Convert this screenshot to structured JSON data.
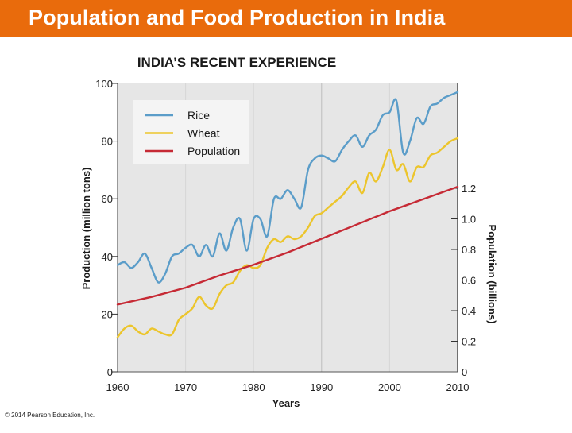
{
  "header": {
    "title": "Population and Food Production in India",
    "background_color": "#e96b0c"
  },
  "footer": {
    "copyright": "© 2014 Pearson Education, Inc."
  },
  "chart_data": {
    "type": "line",
    "title": "INDIA’S RECENT EXPERIENCE",
    "xlabel": "Years",
    "ylabel": "Production (million tons)",
    "y2label": "Population (billions)",
    "xlim": [
      1960,
      2010
    ],
    "ylim": [
      0,
      100
    ],
    "y2lim": [
      0,
      1.3
    ],
    "x_ticks": [
      1960,
      1970,
      1980,
      1990,
      2000,
      2010
    ],
    "x_tick_labels": [
      "1960",
      "1970",
      "1980",
      "1990",
      "2000",
      "2010"
    ],
    "y_ticks": [
      0,
      20,
      40,
      60,
      80,
      100
    ],
    "y_tick_labels": [
      "0",
      "20",
      "40",
      "60",
      "80",
      "100"
    ],
    "y2_ticks": [
      0,
      0.2,
      0.4,
      0.6,
      0.8,
      1.0,
      1.2
    ],
    "y2_tick_labels": [
      "0",
      "0.2",
      "0.4",
      "0.6",
      "0.8",
      "1.0",
      "1.2"
    ],
    "grid": "vertical at decades",
    "legend_position": "top-left",
    "series": [
      {
        "name": "Rice",
        "axis": "left",
        "color": "#5b9dc9",
        "x": [
          1960,
          1961,
          1962,
          1963,
          1964,
          1965,
          1966,
          1967,
          1968,
          1969,
          1970,
          1971,
          1972,
          1973,
          1974,
          1975,
          1976,
          1977,
          1978,
          1979,
          1980,
          1981,
          1982,
          1983,
          1984,
          1985,
          1986,
          1987,
          1988,
          1989,
          1990,
          1991,
          1992,
          1993,
          1994,
          1995,
          1996,
          1997,
          1998,
          1999,
          2000,
          2001,
          2002,
          2003,
          2004,
          2005,
          2006,
          2007,
          2008,
          2009,
          2010
        ],
        "values": [
          37,
          38,
          36,
          38,
          41,
          36,
          31,
          34,
          40,
          41,
          43,
          44,
          40,
          44,
          40,
          48,
          42,
          50,
          53,
          42,
          53,
          53,
          47,
          60,
          60,
          63,
          60,
          57,
          70,
          74,
          75,
          74,
          73,
          77,
          80,
          82,
          78,
          82,
          84,
          89,
          90,
          94,
          76,
          80,
          88,
          86,
          92,
          93,
          95,
          96,
          97
        ]
      },
      {
        "name": "Wheat",
        "axis": "left",
        "color": "#ecc52c",
        "x": [
          1960,
          1961,
          1962,
          1963,
          1964,
          1965,
          1966,
          1967,
          1968,
          1969,
          1970,
          1971,
          1972,
          1973,
          1974,
          1975,
          1976,
          1977,
          1978,
          1979,
          1980,
          1981,
          1982,
          1983,
          1984,
          1985,
          1986,
          1987,
          1988,
          1989,
          1990,
          1991,
          1992,
          1993,
          1994,
          1995,
          1996,
          1997,
          1998,
          1999,
          2000,
          2001,
          2002,
          2003,
          2004,
          2005,
          2006,
          2007,
          2008,
          2009,
          2010
        ],
        "values": [
          12,
          15,
          16,
          14,
          13,
          15,
          14,
          13,
          13,
          18,
          20,
          22,
          26,
          23,
          22,
          27,
          30,
          31,
          35,
          37,
          36,
          37,
          43,
          46,
          45,
          47,
          46,
          47,
          50,
          54,
          55,
          57,
          59,
          61,
          64,
          66,
          62,
          69,
          66,
          71,
          77,
          70,
          72,
          66,
          71,
          71,
          75,
          76,
          78,
          80,
          81
        ]
      },
      {
        "name": "Population",
        "axis": "right",
        "color": "#c62a35",
        "x": [
          1960,
          1965,
          1970,
          1975,
          1980,
          1985,
          1990,
          1995,
          2000,
          2005,
          2010
        ],
        "values": [
          0.44,
          0.49,
          0.55,
          0.63,
          0.7,
          0.78,
          0.87,
          0.96,
          1.05,
          1.13,
          1.21
        ]
      }
    ]
  }
}
